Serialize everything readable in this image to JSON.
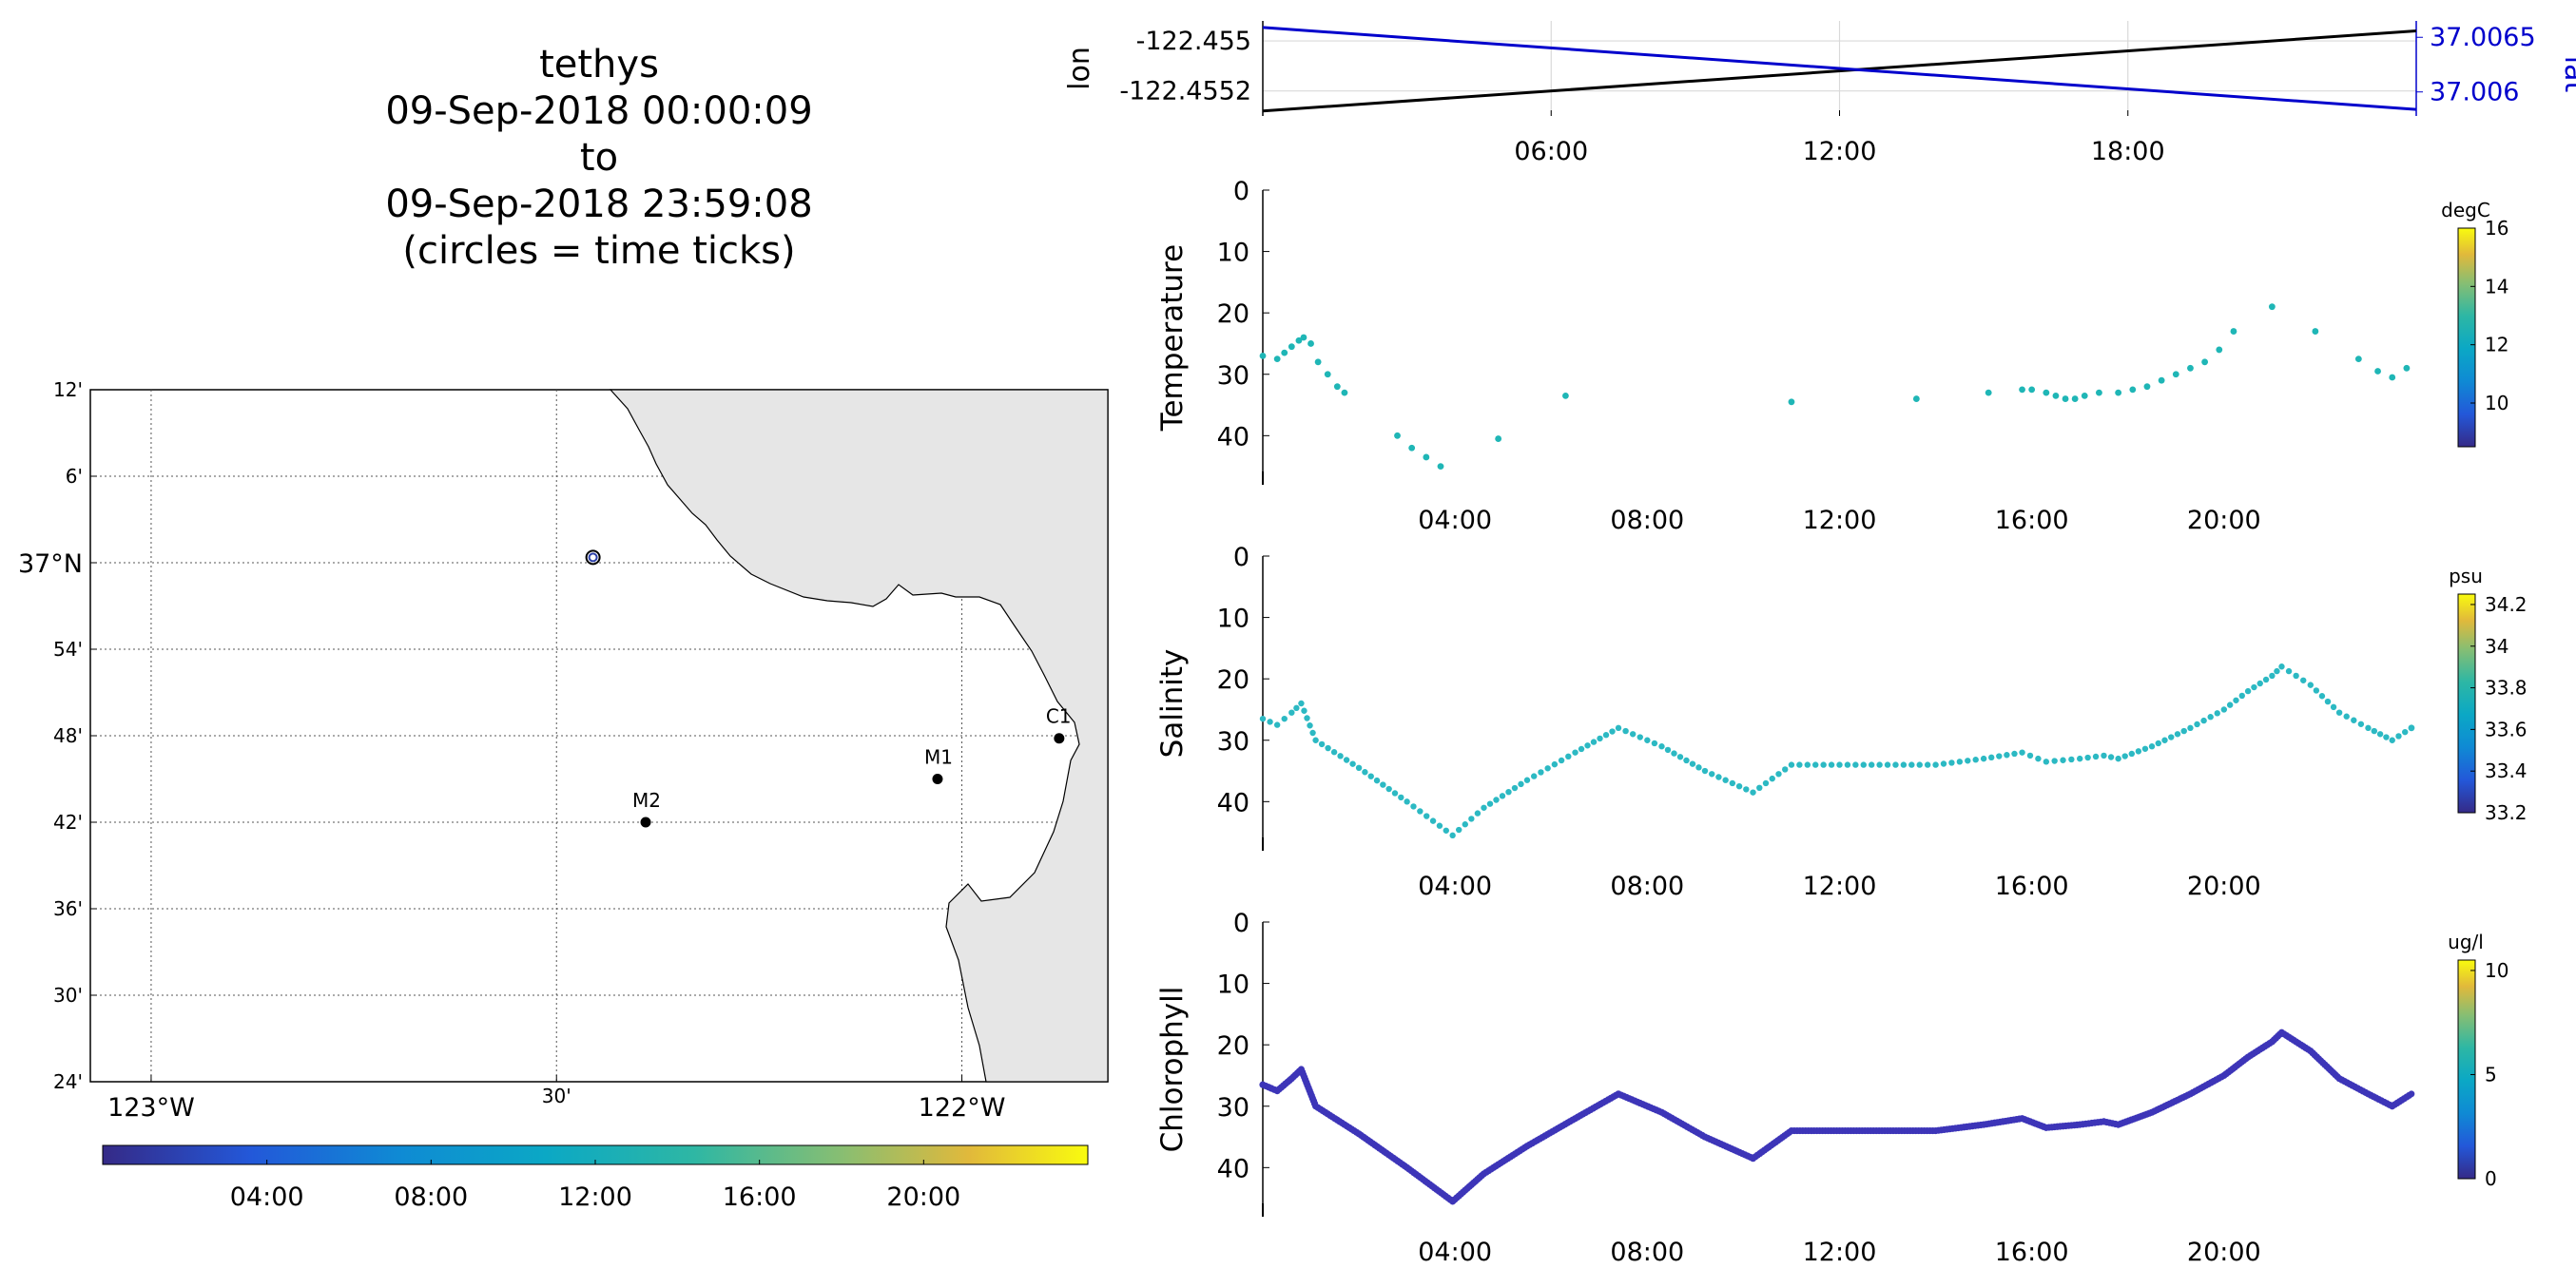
{
  "header": {
    "lines": [
      "tethys",
      "09-Sep-2018 00:00:09",
      "to",
      "09-Sep-2018 23:59:08",
      "(circles = time ticks)"
    ]
  },
  "colors": {
    "lon_line": "#000000",
    "lat_line": "#0000cc",
    "land": "#e6e6e6",
    "points_temperature": "#1fb6b6",
    "points_salinity": "#2cb9c3",
    "points_chlorophyll": "#3d35b8"
  },
  "map": {
    "lat_ticks": [
      "12'",
      "6'",
      "37°N",
      "54'",
      "48'",
      "42'",
      "36'",
      "30'",
      "24'"
    ],
    "lon_ticks": [
      "123°W",
      "30'",
      "122°W"
    ],
    "stations": [
      {
        "name": "C1",
        "lon": -121.88,
        "lat": 36.797
      },
      {
        "name": "M1",
        "lon": -122.03,
        "lat": 36.75
      },
      {
        "name": "M2",
        "lon": -122.39,
        "lat": 36.7
      }
    ],
    "vehicle_position": {
      "lon": -122.455,
      "lat": 37.0062
    },
    "time_colorbar_ticks": [
      "04:00",
      "08:00",
      "12:00",
      "16:00",
      "20:00"
    ]
  },
  "chart_data": [
    {
      "type": "line",
      "title": "",
      "xlabel": "",
      "ylabel": "lon",
      "ylabel_right": "lat",
      "xlim": [
        0,
        24
      ],
      "x_ticks": [
        "06:00",
        "12:00",
        "18:00"
      ],
      "y_ticks": [
        "-122.455",
        "-122.4552"
      ],
      "y_ticks_right": [
        "37.0065",
        "37.006"
      ],
      "series": [
        {
          "name": "lon",
          "axis": "left",
          "x": [
            0,
            24
          ],
          "values": [
            -122.45528,
            -122.45496
          ]
        },
        {
          "name": "lat",
          "axis": "right",
          "x": [
            0,
            24
          ],
          "values": [
            37.00659,
            37.00584
          ]
        }
      ]
    },
    {
      "type": "scatter",
      "ylabel": "Temperature",
      "xlim": [
        0,
        24
      ],
      "ylim": [
        0,
        48
      ],
      "y_reversed": true,
      "x_ticks": [
        "04:00",
        "08:00",
        "12:00",
        "16:00",
        "20:00"
      ],
      "y_ticks": [
        "0",
        "10",
        "20",
        "30",
        "40"
      ],
      "colorbar": {
        "unit": "degC",
        "ticks": [
          "10",
          "12",
          "14",
          "16"
        ],
        "range": [
          8.5,
          16
        ]
      },
      "x": [
        0.0,
        0.3,
        0.45,
        0.6,
        0.75,
        0.85,
        1.0,
        1.15,
        1.35,
        1.55,
        1.7,
        2.8,
        3.1,
        3.4,
        3.7,
        4.9,
        6.3,
        11.0,
        13.6,
        15.1,
        15.8,
        16.0,
        16.3,
        16.5,
        16.7,
        16.9,
        17.1,
        17.4,
        17.8,
        18.1,
        18.4,
        18.7,
        19.0,
        19.3,
        19.6,
        19.9,
        20.2,
        21.0,
        21.9,
        22.8,
        23.2,
        23.5,
        23.8
      ],
      "values": [
        27,
        27.5,
        26.5,
        25.5,
        24.5,
        24,
        25,
        28,
        30,
        32,
        33,
        40,
        42,
        43.5,
        45,
        40.5,
        33.5,
        34.5,
        34,
        33,
        32.5,
        32.5,
        33,
        33.5,
        34,
        34,
        33.5,
        33,
        33,
        32.5,
        32,
        31,
        30,
        29,
        28,
        26,
        23,
        19,
        23,
        27.5,
        29.5,
        30.5,
        29
      ],
      "point_color": "#1fb6b6"
    },
    {
      "type": "scatter",
      "ylabel": "Salinity",
      "xlim": [
        0,
        24
      ],
      "ylim": [
        0,
        48
      ],
      "y_reversed": true,
      "x_ticks": [
        "04:00",
        "08:00",
        "12:00",
        "16:00",
        "20:00"
      ],
      "y_ticks": [
        "0",
        "10",
        "20",
        "30",
        "40"
      ],
      "colorbar": {
        "unit": "psu",
        "ticks": [
          "33.2",
          "33.4",
          "33.6",
          "33.8",
          "34",
          "34.2"
        ],
        "range": [
          33.2,
          34.25
        ]
      },
      "x": [
        0.0,
        0.3,
        0.6,
        0.8,
        1.1,
        2.0,
        3.0,
        3.95,
        4.6,
        5.5,
        6.5,
        7.4,
        8.3,
        9.2,
        10.2,
        11.0,
        12.0,
        13.0,
        14.0,
        15.0,
        15.8,
        16.3,
        17.0,
        17.5,
        17.8,
        18.5,
        19.3,
        20.0,
        20.5,
        21.0,
        21.2,
        21.8,
        22.4,
        23.0,
        23.5,
        23.9
      ],
      "values": [
        26.5,
        27.5,
        25.5,
        24,
        30,
        34.5,
        40,
        45.5,
        41,
        36.5,
        32,
        28,
        31,
        35,
        38.5,
        34,
        34,
        34,
        34,
        33,
        32,
        33.5,
        33,
        32.5,
        33,
        31,
        28,
        25,
        22,
        19.5,
        18,
        21,
        25.5,
        28,
        30,
        28
      ],
      "point_color": "#2cb9c3"
    },
    {
      "type": "scatter",
      "ylabel": "Chlorophyll",
      "xlim": [
        0,
        24
      ],
      "ylim": [
        0,
        48
      ],
      "y_reversed": true,
      "x_ticks": [
        "04:00",
        "08:00",
        "12:00",
        "16:00",
        "20:00"
      ],
      "y_ticks": [
        "0",
        "10",
        "20",
        "30",
        "40"
      ],
      "colorbar": {
        "unit": "ug/l",
        "ticks": [
          "0",
          "5",
          "10"
        ],
        "range": [
          0,
          10.5
        ]
      },
      "x": [
        0.0,
        0.3,
        0.6,
        0.8,
        1.1,
        2.0,
        3.0,
        3.95,
        4.6,
        5.5,
        6.5,
        7.4,
        8.3,
        9.2,
        10.2,
        11.0,
        12.0,
        13.0,
        14.0,
        15.0,
        15.8,
        16.3,
        17.0,
        17.5,
        17.8,
        18.5,
        19.3,
        20.0,
        20.5,
        21.0,
        21.2,
        21.8,
        22.4,
        23.0,
        23.5,
        23.9
      ],
      "values": [
        26.5,
        27.5,
        25.5,
        24,
        30,
        34.5,
        40,
        45.5,
        41,
        36.5,
        32,
        28,
        31,
        35,
        38.5,
        34,
        34,
        34,
        34,
        33,
        32,
        33.5,
        33,
        32.5,
        33,
        31,
        28,
        25,
        22,
        19.5,
        18,
        21,
        25.5,
        28,
        30,
        28
      ],
      "point_color": "#3d35b8"
    }
  ]
}
